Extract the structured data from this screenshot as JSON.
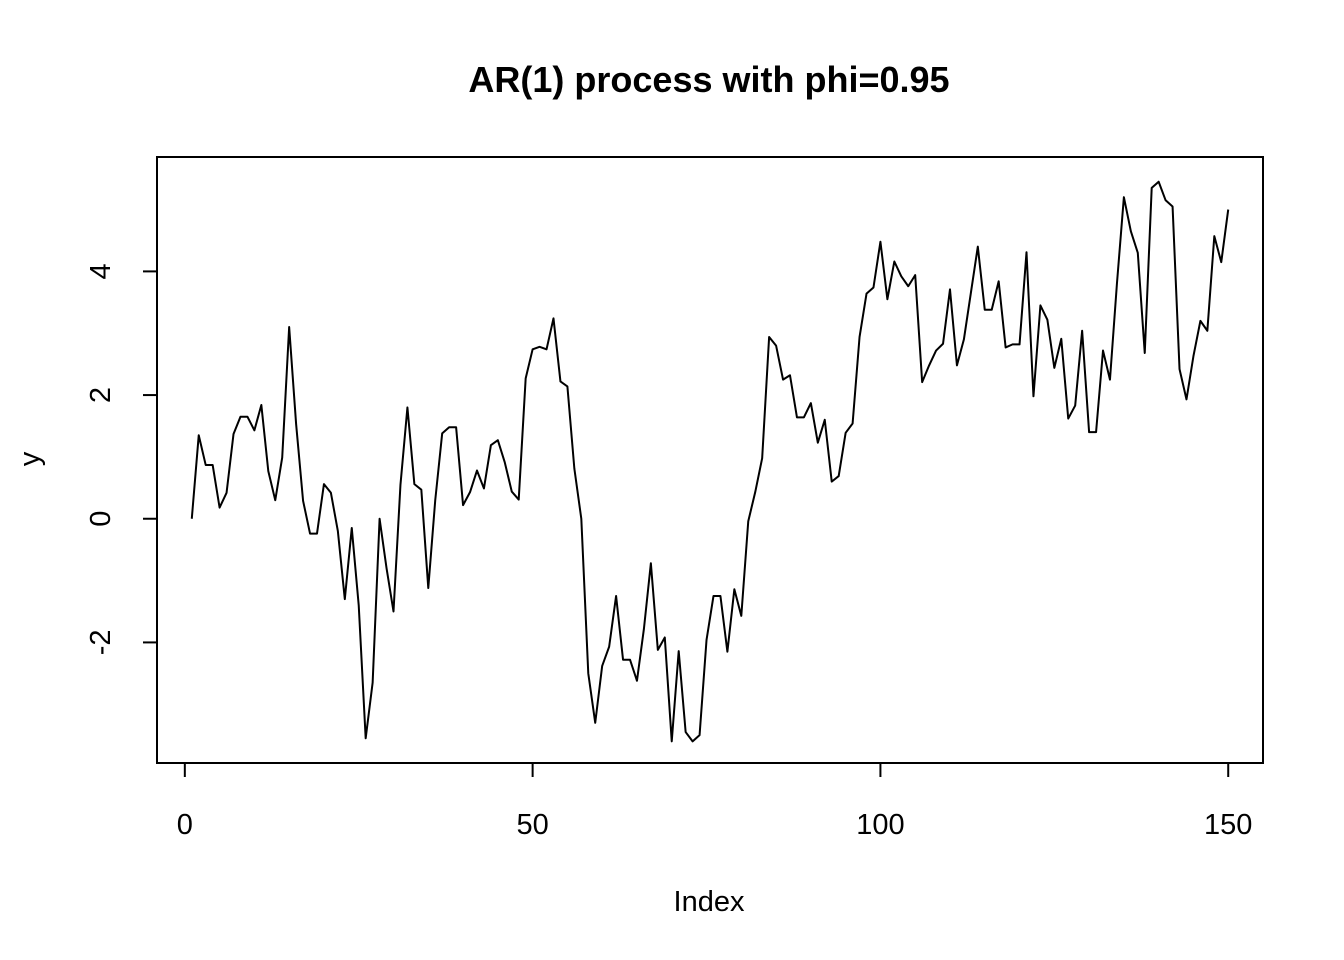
{
  "chart_data": {
    "type": "line",
    "title": "AR(1) process with phi=0.95",
    "xlabel": "Index",
    "ylabel": "y",
    "xlim": [
      -4,
      155
    ],
    "ylim": [
      -3.95,
      5.85
    ],
    "x_ticks": [
      0,
      50,
      100,
      150
    ],
    "x_tick_labels": [
      "0",
      "50",
      "100",
      "150"
    ],
    "y_ticks": [
      -2,
      0,
      2,
      4
    ],
    "y_tick_labels": [
      "-2",
      "0",
      "2",
      "4"
    ],
    "grid": false,
    "legend": "none",
    "line_color": "#000000",
    "series": [
      {
        "x_start": 1,
        "values": [
          0.0,
          1.35,
          0.87,
          0.87,
          0.18,
          0.42,
          1.37,
          1.65,
          1.65,
          1.43,
          1.84,
          0.77,
          0.3,
          0.99,
          3.1,
          1.53,
          0.29,
          -0.24,
          -0.24,
          0.56,
          0.42,
          -0.2,
          -1.3,
          -0.15,
          -1.4,
          -3.55,
          -2.65,
          0.0,
          -0.8,
          -1.5,
          0.55,
          1.8,
          0.56,
          0.47,
          -1.12,
          0.3,
          1.38,
          1.48,
          1.48,
          0.22,
          0.43,
          0.78,
          0.49,
          1.19,
          1.27,
          0.91,
          0.44,
          0.31,
          2.27,
          2.74,
          2.78,
          2.74,
          3.24,
          2.22,
          2.14,
          0.81,
          0.0,
          -2.5,
          -3.3,
          -2.38,
          -2.07,
          -1.25,
          -2.28,
          -2.28,
          -2.62,
          -1.78,
          -0.72,
          -2.12,
          -1.92,
          -3.6,
          -2.14,
          -3.45,
          -3.6,
          -3.5,
          -1.96,
          -1.25,
          -1.25,
          -2.15,
          -1.14,
          -1.57,
          -0.04,
          0.43,
          0.98,
          2.94,
          2.8,
          2.25,
          2.32,
          1.64,
          1.64,
          1.87,
          1.23,
          1.6,
          0.6,
          0.69,
          1.39,
          1.54,
          2.94,
          3.64,
          3.74,
          4.48,
          3.55,
          4.16,
          3.92,
          3.76,
          3.94,
          2.21,
          2.48,
          2.72,
          2.83,
          3.71,
          2.48,
          2.9,
          3.65,
          4.4,
          3.38,
          3.38,
          3.84,
          2.77,
          2.82,
          2.82,
          4.31,
          1.98,
          3.45,
          3.22,
          2.44,
          2.91,
          1.62,
          1.83,
          3.04,
          1.4,
          1.4,
          2.72,
          2.25,
          3.8,
          5.2,
          4.65,
          4.3,
          2.68,
          5.35,
          5.45,
          5.15,
          5.05,
          2.42,
          1.93,
          2.63,
          3.2,
          3.04,
          4.57,
          4.15,
          5.0
        ]
      }
    ]
  }
}
